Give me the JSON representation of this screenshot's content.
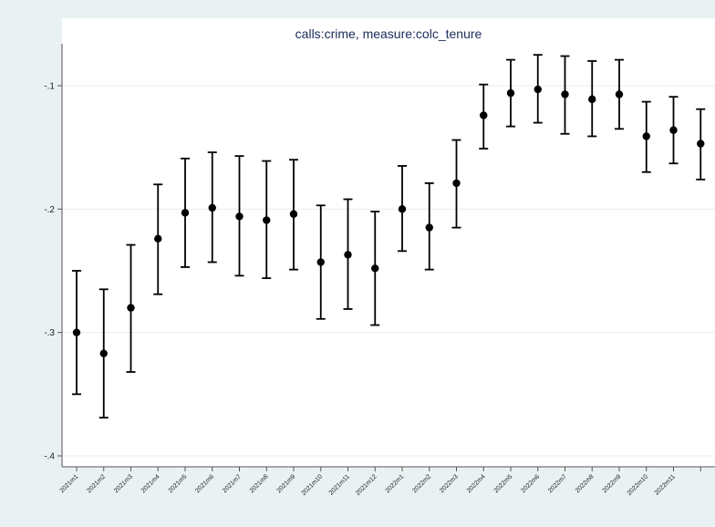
{
  "chart_data": {
    "type": "scatter",
    "title": "calls:crime, measure:colc_tenure",
    "xlabel": "",
    "ylabel": "",
    "ylim": [
      -0.41,
      -0.065
    ],
    "yticks": [
      -0.1,
      -0.2,
      -0.3,
      -0.4
    ],
    "ytick_labels": [
      "-.1",
      "-.2",
      "-.3",
      "-.4"
    ],
    "grid": true,
    "colors": {
      "marker": "#000000",
      "grid": "#ebebeb",
      "title": "#1a2a5a"
    },
    "categories": [
      "2021m1",
      "2021m2",
      "2021m3",
      "2021m4",
      "2021m5",
      "2021m6",
      "2021m7",
      "2021m8",
      "2021m9",
      "2021m10",
      "2021m11",
      "2021m12",
      "2022m1",
      "2022m2",
      "2022m3",
      "2022m4",
      "2022m5",
      "2022m6",
      "2022m7",
      "2022m8",
      "2022m9",
      "2022m10",
      "2022m11",
      ""
    ],
    "series": [
      {
        "estimate": [
          -0.3,
          -0.317,
          -0.28,
          -0.224,
          -0.203,
          -0.199,
          -0.206,
          -0.209,
          -0.204,
          -0.243,
          -0.237,
          -0.248,
          -0.2,
          -0.215,
          -0.179,
          -0.124,
          -0.106,
          -0.103,
          -0.107,
          -0.111,
          -0.107,
          -0.141,
          -0.136,
          -0.147
        ],
        "ci_low": [
          -0.35,
          -0.369,
          -0.332,
          -0.269,
          -0.247,
          -0.243,
          -0.254,
          -0.256,
          -0.249,
          -0.289,
          -0.281,
          -0.294,
          -0.234,
          -0.249,
          -0.215,
          -0.151,
          -0.133,
          -0.13,
          -0.139,
          -0.141,
          -0.135,
          -0.17,
          -0.163,
          -0.176
        ],
        "ci_high": [
          -0.25,
          -0.265,
          -0.229,
          -0.18,
          -0.159,
          -0.154,
          -0.157,
          -0.161,
          -0.16,
          -0.197,
          -0.192,
          -0.202,
          -0.165,
          -0.179,
          -0.144,
          -0.099,
          -0.079,
          -0.075,
          -0.076,
          -0.08,
          -0.079,
          -0.113,
          -0.109,
          -0.119
        ]
      }
    ]
  }
}
